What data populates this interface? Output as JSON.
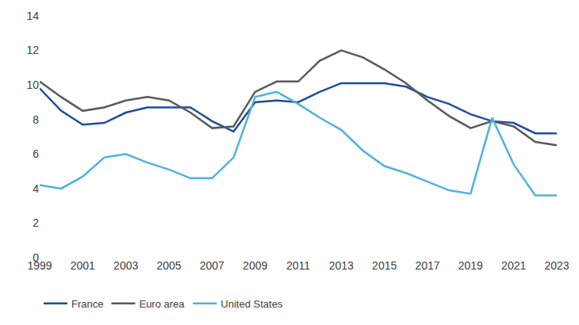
{
  "chart_data": {
    "type": "line",
    "x": [
      1999,
      2000,
      2001,
      2002,
      2003,
      2004,
      2005,
      2006,
      2007,
      2008,
      2009,
      2010,
      2011,
      2012,
      2013,
      2014,
      2015,
      2016,
      2017,
      2018,
      2019,
      2020,
      2021,
      2022,
      2023
    ],
    "series": [
      {
        "name": "France",
        "color": "#1f4e9c",
        "values": [
          9.8,
          8.5,
          7.7,
          7.8,
          8.4,
          8.7,
          8.7,
          8.7,
          7.9,
          7.3,
          9.0,
          9.1,
          9.0,
          9.6,
          10.1,
          10.1,
          10.1,
          9.9,
          9.3,
          8.9,
          8.3,
          7.9,
          7.8,
          7.2,
          7.2
        ]
      },
      {
        "name": "Euro area",
        "color": "#5a5a5a",
        "values": [
          10.2,
          9.3,
          8.5,
          8.7,
          9.1,
          9.3,
          9.1,
          8.4,
          7.5,
          7.6,
          9.6,
          10.2,
          10.2,
          11.4,
          12.0,
          11.6,
          10.9,
          10.1,
          9.1,
          8.2,
          7.5,
          7.9,
          7.6,
          6.7,
          6.5
        ]
      },
      {
        "name": "United States",
        "color": "#4fb3d9",
        "values": [
          4.2,
          4.0,
          4.7,
          5.8,
          6.0,
          5.5,
          5.1,
          4.6,
          4.6,
          5.8,
          9.3,
          9.6,
          8.9,
          8.1,
          7.4,
          6.2,
          5.3,
          4.9,
          4.4,
          3.9,
          3.7,
          8.1,
          5.4,
          3.6,
          3.6
        ]
      }
    ],
    "xlim": [
      1999,
      2023
    ],
    "xticks": [
      1999,
      2001,
      2003,
      2005,
      2007,
      2009,
      2011,
      2013,
      2015,
      2017,
      2019,
      2021,
      2023
    ],
    "ylim": [
      0,
      14
    ],
    "yticks": [
      0,
      2,
      4,
      6,
      8,
      10,
      12,
      14
    ],
    "grid": false,
    "legend": "bottom"
  }
}
